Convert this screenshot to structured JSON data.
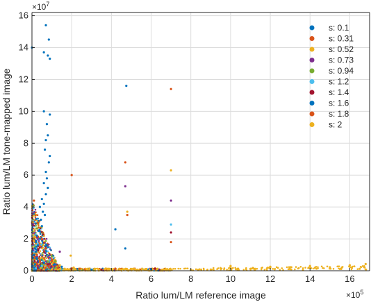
{
  "chart_data": {
    "type": "scatter",
    "title": "",
    "xlabel": "Ratio lum/LM reference image",
    "ylabel": "Ratio lum/LM tone-mapped image",
    "x_exponent_label": "×10",
    "x_exponent_power": "5",
    "y_exponent_label": "×10",
    "y_exponent_power": "7",
    "x_scale_factor": 100000,
    "y_scale_factor": 10000000,
    "xlim": [
      0,
      1700000
    ],
    "ylim": [
      0,
      162000000
    ],
    "x_ticks": [
      0,
      200000,
      400000,
      600000,
      800000,
      1000000,
      1200000,
      1400000,
      1600000
    ],
    "x_tick_labels": [
      "0",
      "2",
      "4",
      "6",
      "8",
      "10",
      "12",
      "14",
      "16"
    ],
    "y_ticks": [
      0,
      20000000,
      40000000,
      60000000,
      80000000,
      100000000,
      120000000,
      140000000,
      160000000
    ],
    "y_tick_labels": [
      "0",
      "2",
      "4",
      "6",
      "8",
      "10",
      "12",
      "14",
      "16"
    ],
    "grid": true,
    "legend_position": "top-right",
    "series": [
      {
        "name": "s: 0.1",
        "color": "#0072BD",
        "points": [
          [
            0,
            140000000
          ],
          [
            60000,
            137000000
          ],
          [
            80000,
            135000000
          ],
          [
            70000,
            154000000
          ],
          [
            85000,
            145000000
          ],
          [
            90000,
            133000000
          ],
          [
            60000,
            100000000
          ],
          [
            90000,
            98000000
          ],
          [
            75000,
            92000000
          ],
          [
            80000,
            85000000
          ],
          [
            70000,
            82000000
          ],
          [
            65000,
            76000000
          ],
          [
            90000,
            72000000
          ],
          [
            85000,
            68000000
          ],
          [
            70000,
            62000000
          ],
          [
            75000,
            58000000
          ],
          [
            60000,
            55000000
          ],
          [
            80000,
            52000000
          ],
          [
            70000,
            48000000
          ],
          [
            50000,
            45000000
          ],
          [
            60000,
            42000000
          ],
          [
            40000,
            40000000
          ],
          [
            55000,
            37000000
          ],
          [
            65000,
            35000000
          ],
          [
            45000,
            32000000
          ],
          [
            30000,
            30000000
          ],
          [
            50000,
            28000000
          ],
          [
            35000,
            25000000
          ],
          [
            25000,
            22000000
          ],
          [
            40000,
            20000000
          ],
          [
            20000,
            18000000
          ],
          [
            30000,
            16000000
          ],
          [
            15000,
            14000000
          ],
          [
            20000,
            12000000
          ],
          [
            10000,
            10000000
          ],
          [
            25000,
            8000000
          ],
          [
            35000,
            6000000
          ],
          [
            15000,
            4000000
          ],
          [
            45000,
            3000000
          ],
          [
            10000,
            2000000
          ],
          [
            20000,
            1000000
          ],
          [
            475000,
            116000000
          ],
          [
            420000,
            26000000
          ]
        ]
      },
      {
        "name": "s: 0.31",
        "color": "#D95319",
        "points": [
          [
            200000,
            60000000
          ],
          [
            470000,
            68000000
          ],
          [
            700000,
            114000000
          ],
          [
            10000,
            44000000
          ],
          [
            30000,
            30000000
          ],
          [
            50000,
            20000000
          ],
          [
            70000,
            14000000
          ],
          [
            25000,
            10000000
          ],
          [
            40000,
            6000000
          ],
          [
            80000,
            3000000
          ],
          [
            130000,
            1800000
          ],
          [
            240000,
            1200000
          ],
          [
            420000,
            1300000
          ],
          [
            620000,
            1500000
          ]
        ]
      },
      {
        "name": "s: 0.52",
        "color": "#EDB120",
        "points": [
          [
            140000,
            3000000
          ],
          [
            195000,
            9500000
          ],
          [
            700000,
            63000000
          ],
          [
            1000000,
            2000000
          ],
          [
            1200000,
            2500000
          ],
          [
            1400000,
            3000000
          ],
          [
            1680000,
            4200000
          ],
          [
            1600000,
            3500000
          ],
          [
            1300000,
            1000000
          ],
          [
            1100000,
            1200000
          ],
          [
            900000,
            800000
          ],
          [
            800000,
            500000
          ],
          [
            1500000,
            2200000
          ],
          [
            1650000,
            1200000
          ],
          [
            1560000,
            2000000
          ]
        ]
      },
      {
        "name": "s: 0.73",
        "color": "#7E2F8E",
        "points": [
          [
            470000,
            53000000
          ],
          [
            700000,
            44000000
          ],
          [
            140000,
            12000000
          ],
          [
            90000,
            8000000
          ],
          [
            60000,
            5000000
          ],
          [
            30000,
            3000000
          ]
        ]
      },
      {
        "name": "s: 0.94",
        "color": "#77AC30",
        "points": [
          [
            100000,
            9000000
          ],
          [
            80000,
            6000000
          ],
          [
            50000,
            4000000
          ],
          [
            120000,
            2000000
          ]
        ]
      },
      {
        "name": "s: 1.2",
        "color": "#4DBEEE",
        "points": [
          [
            700000,
            29000000
          ],
          [
            90000,
            7000000
          ],
          [
            50000,
            3000000
          ],
          [
            20000,
            1500000
          ]
        ]
      },
      {
        "name": "s: 1.4",
        "color": "#A2142F",
        "points": [
          [
            700000,
            24000000
          ],
          [
            620000,
            1200000
          ],
          [
            350000,
            800000
          ],
          [
            80000,
            4000000
          ]
        ]
      },
      {
        "name": "s: 1.6",
        "color": "#0072BD",
        "points": [
          [
            470000,
            14000000
          ],
          [
            600000,
            1000000
          ],
          [
            300000,
            700000
          ],
          [
            150000,
            2500000
          ],
          [
            60000,
            5000000
          ]
        ]
      },
      {
        "name": "s: 1.8",
        "color": "#D95319",
        "points": [
          [
            480000,
            35000000
          ],
          [
            700000,
            18000000
          ],
          [
            100000,
            6000000
          ],
          [
            200000,
            1500000
          ]
        ]
      },
      {
        "name": "s: 2",
        "color": "#EDB120",
        "points": [
          [
            140000,
            3500000
          ],
          [
            480000,
            37000000
          ],
          [
            210000,
            2000000
          ],
          [
            1000000,
            3000000
          ],
          [
            1200000,
            2000000
          ]
        ]
      }
    ]
  }
}
